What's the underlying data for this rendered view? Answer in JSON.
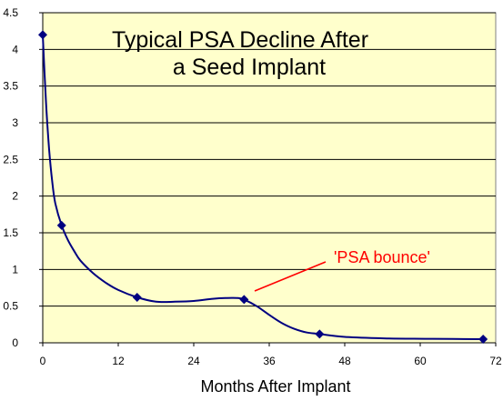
{
  "chart_data": {
    "type": "line",
    "title_lines": [
      "Typical PSA Decline After",
      "a Seed Implant"
    ],
    "xlabel": "Months After Implant",
    "ylabel": "",
    "xlim": [
      0,
      72
    ],
    "ylim": [
      0,
      4.5
    ],
    "xticks": [
      "0",
      "12",
      "24",
      "36",
      "48",
      "60",
      "72"
    ],
    "yticks": [
      "0",
      "0.5",
      "1",
      "1.5",
      "2",
      "2.5",
      "3",
      "3.5",
      "4",
      "4.5"
    ],
    "grid": "horizontal",
    "legend": "none",
    "series": [
      {
        "x": [
          0,
          3,
          15,
          32,
          44,
          70
        ],
        "y": [
          4.2,
          1.6,
          0.62,
          0.59,
          0.12,
          0.05
        ]
      }
    ],
    "smooth_curve": {
      "x": [
        0,
        0.5,
        1,
        1.5,
        2,
        3,
        4,
        5,
        6,
        8,
        10,
        12,
        15,
        18,
        21,
        24,
        27,
        29,
        31,
        32,
        34,
        36,
        38,
        40,
        42,
        44,
        48,
        55,
        62,
        70
      ],
      "y": [
        4.2,
        3.3,
        2.65,
        2.2,
        1.9,
        1.6,
        1.4,
        1.25,
        1.12,
        0.95,
        0.82,
        0.72,
        0.62,
        0.56,
        0.56,
        0.57,
        0.6,
        0.61,
        0.61,
        0.59,
        0.5,
        0.38,
        0.27,
        0.19,
        0.14,
        0.12,
        0.08,
        0.06,
        0.055,
        0.05
      ]
    },
    "annotation": {
      "text": "'PSA bounce'",
      "color": "#ff0000"
    },
    "colors": {
      "plot_background": "#ffffcc",
      "series": "#000080",
      "grid": "#000000",
      "annotation": "#ff0000"
    }
  }
}
